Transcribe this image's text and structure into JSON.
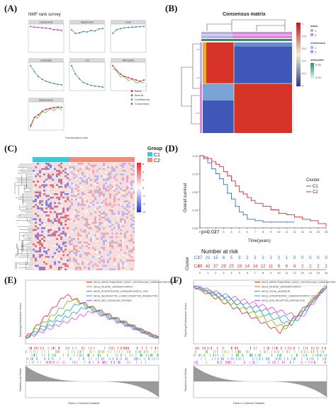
{
  "panel_labels": {
    "a": "(A)",
    "b": "(B)",
    "c": "(C)",
    "d": "(D)",
    "e": "(E)",
    "f": "(F)"
  },
  "panel_a": {
    "title": "NMF rank survey",
    "xlabel": "Factorization rank",
    "legend_title": "Measure type",
    "legend_items": [
      {
        "label": "Basis",
        "color": "#e41a1c"
      },
      {
        "label": "Best fit",
        "color": "#377eb8"
      },
      {
        "label": "Coefficients",
        "color": "#4daf4a"
      },
      {
        "label": "Consensus",
        "color": "#984ea3"
      }
    ],
    "facets": [
      {
        "title": "cophenetic",
        "color": "#984ea3",
        "values": [
          0.99,
          0.96,
          0.95,
          0.93,
          0.92,
          0.9,
          0.85,
          0.85,
          0.82
        ]
      },
      {
        "title": "dispersion",
        "color": "#377eb8",
        "values": [
          0.85,
          0.7,
          0.72,
          0.78,
          0.76,
          0.82,
          0.8,
          0.88,
          0.9
        ]
      },
      {
        "title": "evar",
        "color": "#377eb8",
        "values": [
          0.7,
          0.85,
          0.9,
          0.93,
          0.95,
          0.96,
          0.97,
          0.98,
          0.99
        ]
      },
      {
        "title": "residuals",
        "color": "#377eb8",
        "values": [
          0.95,
          0.7,
          0.5,
          0.38,
          0.3,
          0.25,
          0.2,
          0.17,
          0.15
        ]
      },
      {
        "title": "rss",
        "color": "#377eb8",
        "values": [
          0.95,
          0.6,
          0.4,
          0.25,
          0.18,
          0.13,
          0.1,
          0.08,
          0.06
        ]
      },
      {
        "title": "silhouette",
        "color": "#e41a1c",
        "values": [
          0.95,
          0.75,
          0.6,
          0.5,
          0.45,
          0.4,
          0.35,
          0.3,
          0.35
        ]
      },
      {
        "title": "sparseness",
        "color": "#e41a1c",
        "values": [
          0.1,
          0.45,
          0.55,
          0.7,
          0.78,
          0.82,
          0.85,
          0.88,
          0.86
        ]
      }
    ]
  },
  "panel_b": {
    "title": "Consensus matrix",
    "legend": {
      "basis_title": "basis",
      "basis_items": [
        "1",
        "2"
      ],
      "consensus_title": "consensus",
      "consensus_items": [
        "1",
        "2"
      ],
      "silhouette_title": "silhouette",
      "silhouette_ticks": [
        "0.95",
        "0.22"
      ],
      "scale_ticks": [
        "1",
        "0.8",
        "0.6",
        "0.4",
        "0.2",
        "0"
      ]
    }
  },
  "panel_c": {
    "legend_title": "Group",
    "groups": [
      {
        "label": "C1",
        "color": "#3ec7d6"
      },
      {
        "label": "C2",
        "color": "#f08a7a"
      }
    ],
    "scale_ticks": [
      "6",
      "4",
      "2",
      "0",
      "-2",
      "-4",
      "-6"
    ]
  },
  "panel_d": {
    "ylabel": "Overall survival",
    "xlabel": "Time(years)",
    "pvalue": "p=0.027",
    "legend_title": "Cluster",
    "legend_items": [
      {
        "label": "C1",
        "color": "#2f6fd6"
      },
      {
        "label": "C2",
        "color": "#e8252b"
      }
    ],
    "y_ticks": [
      "1.00",
      "0.75",
      "0.50",
      "0.25",
      "0.00"
    ],
    "x_ticks": [
      "0",
      "1",
      "2",
      "3",
      "4",
      "5",
      "6",
      "7",
      "8",
      "9",
      "10",
      "11",
      "12",
      "13",
      "14",
      "15",
      "16"
    ],
    "risk_title": "Number at risk",
    "risk_axis_label": "Cluster",
    "risk_xlabel": "Time(years)",
    "risk_c1": [
      "27",
      "21",
      "15",
      "8",
      "5",
      "3",
      "2",
      "2",
      "2",
      "2",
      "2",
      "1",
      "0",
      "0",
      "0",
      "0",
      "0"
    ],
    "risk_c2": [
      "49",
      "42",
      "37",
      "29",
      "25",
      "19",
      "14",
      "14",
      "12",
      "11",
      "9",
      "6",
      "4",
      "2",
      "2",
      "2",
      "2"
    ]
  },
  "panel_e": {
    "ylabel_top": "Running Enrichment Score",
    "ylabel_bottom": "Ranked List Metric",
    "xlabel": "Rank in Ordered Dataset",
    "legend_items": [
      {
        "label": "KEGG_ARRHYTHMOGENIC_RIGHT_VENTRICULAR_CARDIOMYOPATHY_ARVC",
        "color": "#e8252b"
      },
      {
        "label": "KEGG_DILATED_CARDIOMYOPATHY",
        "color": "#7ab317"
      },
      {
        "label": "KEGG_HYPERTROPHIC_CARDIOMYOPATHY_HCM",
        "color": "#1fa39a"
      },
      {
        "label": "KEGG_NEUROACTIVE_LIGAND_RECEPTOR_INTERACTION",
        "color": "#3a8ee6"
      },
      {
        "label": "KEGG_WNT_SIGNALING_PATHWAY",
        "color": "#e349d6"
      }
    ]
  },
  "panel_f": {
    "ylabel_top": "Running Enrichment Score",
    "ylabel_bottom": "Ranked List Metric",
    "xlabel": "Rank in Ordered Dataset",
    "legend_items": [
      {
        "label": "KEGG_ARRHYTHMOGENIC_RIGHT_VENTRICULAR_CARDIOMYOPATHY_ARVC",
        "color": "#e8252b"
      },
      {
        "label": "KEGG_DILATED_CARDIOMYOPATHY",
        "color": "#7ab317"
      },
      {
        "label": "KEGG_FOCAL_ADHESION",
        "color": "#1fa39a"
      },
      {
        "label": "KEGG_HYPERTROPHIC_CARDIOMYOPATHY_HCM",
        "color": "#3a8ee6"
      },
      {
        "label": "KEGG_ECM_RECEPTOR_INTERACTION",
        "color": "#e349d6"
      }
    ]
  }
}
